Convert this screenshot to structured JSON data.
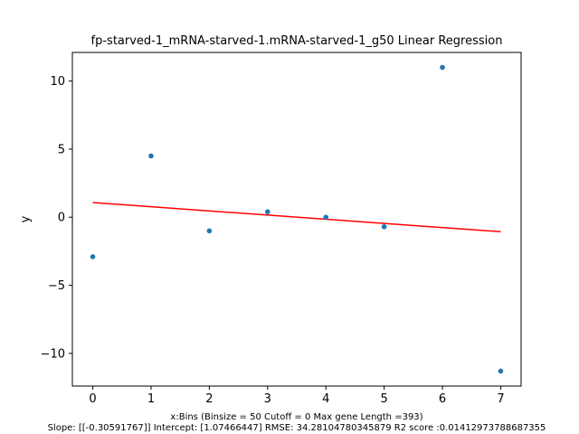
{
  "chart_data": {
    "type": "scatter",
    "title": "fp-starved-1_mRNA-starved-1.mRNA-starved-1_g50 Linear Regression",
    "xlabel_line1": "x:Bins  (Binsize = 50 Cutoff = 0 Max gene Length =393)",
    "xlabel_line2": "Slope: [[-0.30591767]] Intercept: [1.07466447] RMSE: 34.28104780345879 R2 score :0.01412973788687355",
    "ylabel": "y",
    "xlim": [
      -0.35,
      7.35
    ],
    "ylim": [
      -12.4,
      12.1
    ],
    "xticks": [
      0,
      1,
      2,
      3,
      4,
      5,
      6,
      7
    ],
    "xtick_labels": [
      "0",
      "1",
      "2",
      "3",
      "4",
      "5",
      "6",
      "7"
    ],
    "yticks": [
      -10,
      -5,
      0,
      5,
      10
    ],
    "ytick_labels": [
      "−10",
      "−5",
      "0",
      "5",
      "10"
    ],
    "grid": false,
    "points": [
      {
        "x": 0,
        "y": -2.9
      },
      {
        "x": 1,
        "y": 4.5
      },
      {
        "x": 2,
        "y": -1.0
      },
      {
        "x": 3,
        "y": 0.4
      },
      {
        "x": 4,
        "y": 0.0
      },
      {
        "x": 5,
        "y": -0.7
      },
      {
        "x": 6,
        "y": 11.0
      },
      {
        "x": 7,
        "y": -11.3
      }
    ],
    "regression": {
      "slope": -0.30591767,
      "intercept": 1.07466447,
      "x_range": [
        0,
        7
      ]
    },
    "colors": {
      "points": "#1f77b4",
      "regression_line": "#ff0000",
      "axes": "#000000"
    }
  }
}
